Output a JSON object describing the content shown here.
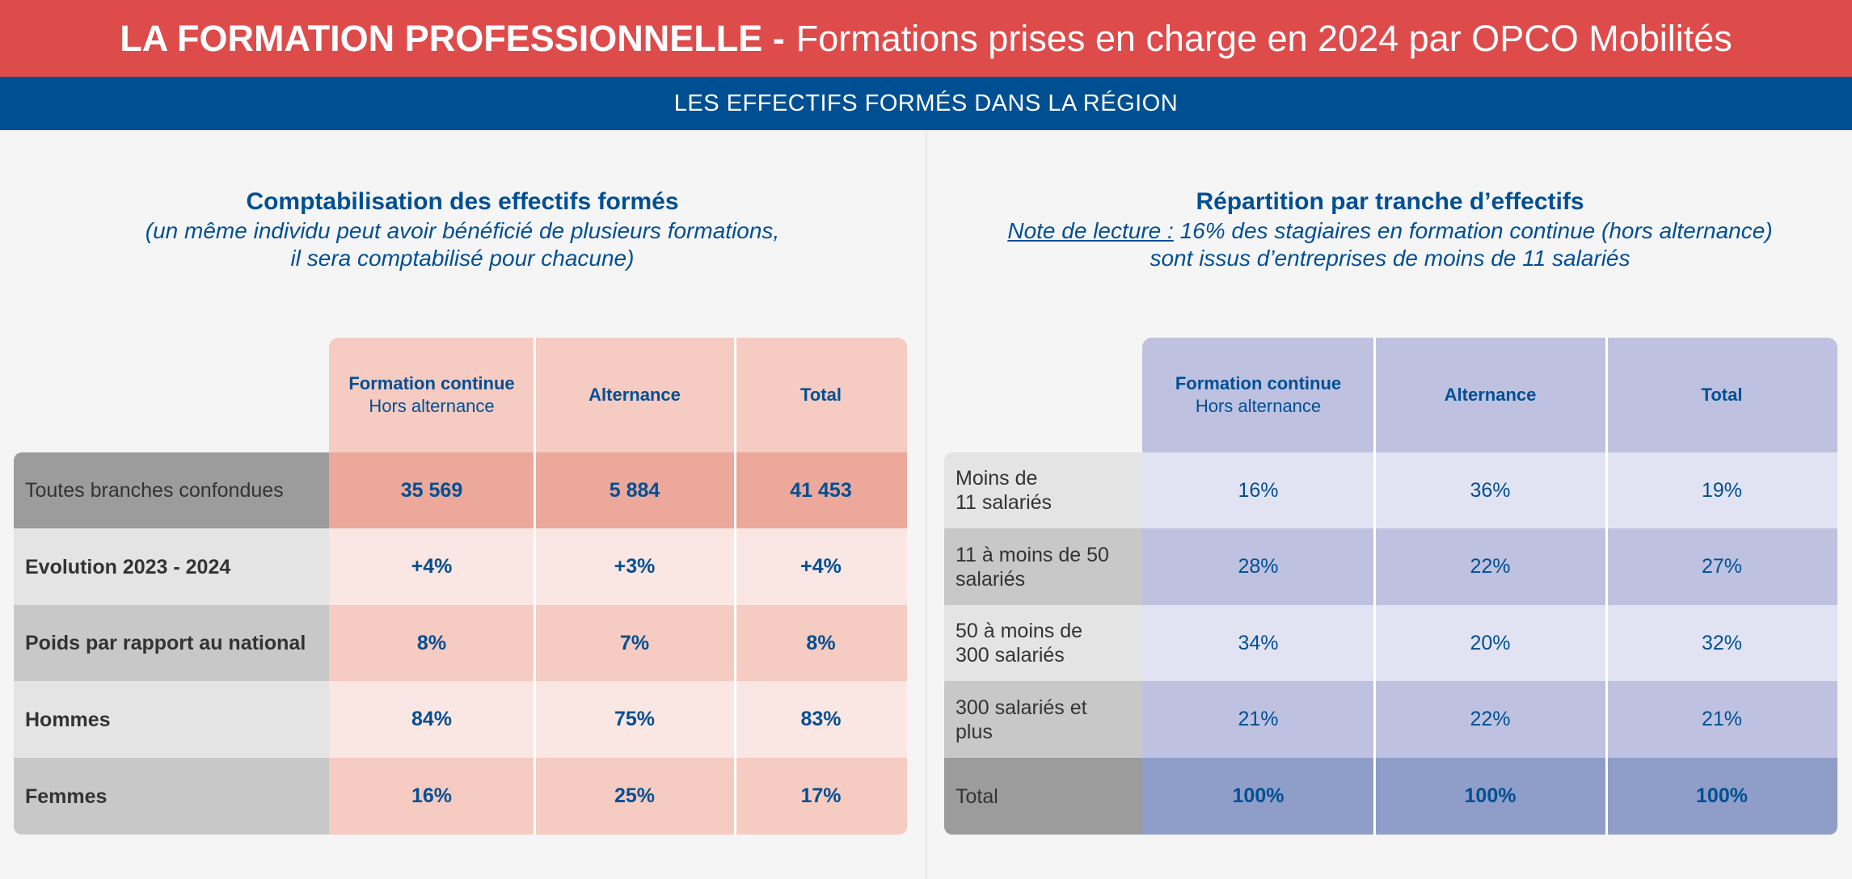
{
  "header": {
    "title_bold": "LA FORMATION PROFESSIONNELLE -",
    "title_light": "Formations prises en charge en 2024 par OPCO Mobilités",
    "subtitle": "LES EFFECTIFS FORMÉS DANS LA RÉGION"
  },
  "left": {
    "title": "Comptabilisation des effectifs formés",
    "note_line1": "(un même individu peut avoir bénéficié de plusieurs formations,",
    "note_line2": "il sera comptabilisé pour chacune)",
    "columns": [
      {
        "main": "Formation continue",
        "sub": "Hors alternance"
      },
      {
        "main": "Alternance",
        "sub": ""
      },
      {
        "main": "Total",
        "sub": ""
      }
    ],
    "rows": [
      {
        "label": "Toutes branches confondues",
        "values": [
          "35 569",
          "5 884",
          "41 453"
        ]
      },
      {
        "label": "Evolution 2023 - 2024",
        "values": [
          "+4%",
          "+3%",
          "+4%"
        ]
      },
      {
        "label": "Poids par rapport au national",
        "values": [
          "8%",
          "7%",
          "8%"
        ]
      },
      {
        "label": "Hommes",
        "values": [
          "84%",
          "75%",
          "83%"
        ]
      },
      {
        "label": "Femmes",
        "values": [
          "16%",
          "25%",
          "17%"
        ]
      }
    ]
  },
  "right": {
    "title": "Répartition par tranche d’effectifs",
    "note_label": "Note de lecture :",
    "note_text": " 16% des stagiaires en formation continue (hors alternance)",
    "note_line2": "sont issus d’entreprises de moins de 11 salariés",
    "columns": [
      {
        "main": "Formation continue",
        "sub": "Hors alternance"
      },
      {
        "main": "Alternance",
        "sub": ""
      },
      {
        "main": "Total",
        "sub": ""
      }
    ],
    "rows": [
      {
        "label_line1": "Moins de",
        "label_line2": "11 salariés",
        "values": [
          "16%",
          "36%",
          "19%"
        ]
      },
      {
        "label_line1": "11 à moins de 50",
        "label_line2": "salariés",
        "values": [
          "28%",
          "22%",
          "27%"
        ]
      },
      {
        "label_line1": "50 à moins de",
        "label_line2": "300 salariés",
        "values": [
          "34%",
          "20%",
          "32%"
        ]
      },
      {
        "label_line1": "300 salariés et",
        "label_line2": "plus",
        "values": [
          "21%",
          "22%",
          "21%"
        ]
      },
      {
        "label_line1": "Total",
        "label_line2": "",
        "values": [
          "100%",
          "100%",
          "100%"
        ]
      }
    ]
  },
  "colors": {
    "red_banner": "#de4b4b",
    "blue_banner": "#004f93",
    "text_blue": "#004f93"
  }
}
